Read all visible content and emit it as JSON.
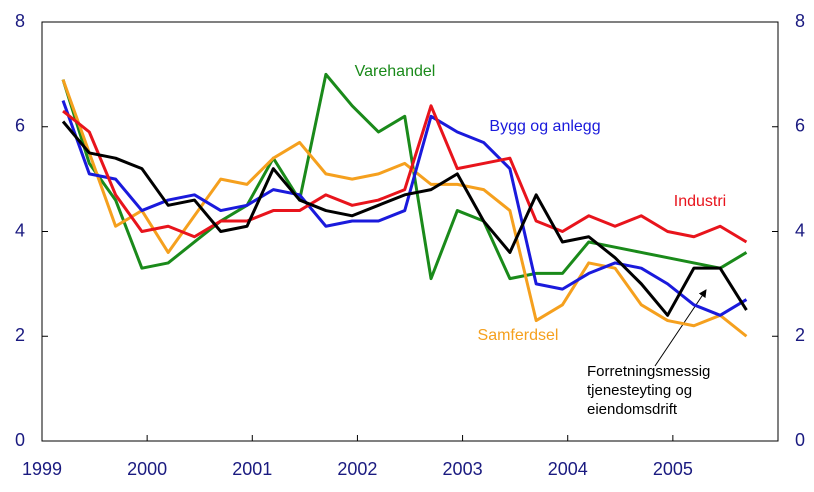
{
  "chart_data": {
    "type": "line",
    "x": [
      1999.2,
      1999.45,
      1999.7,
      1999.95,
      2000.2,
      2000.45,
      2000.7,
      2000.95,
      2001.2,
      2001.45,
      2001.7,
      2001.95,
      2002.2,
      2002.45,
      2002.7,
      2002.95,
      2003.2,
      2003.45,
      2003.7,
      2003.95,
      2004.2,
      2004.45,
      2004.7,
      2004.95,
      2005.2,
      2005.45,
      2005.7
    ],
    "xlim": [
      1999,
      2006
    ],
    "xticks": [
      1999,
      2000,
      2001,
      2002,
      2003,
      2004,
      2005
    ],
    "ylim": [
      0,
      8
    ],
    "yticks": [
      0,
      2,
      4,
      6,
      8
    ],
    "y2lim": [
      0,
      8
    ],
    "y2ticks": [
      0,
      2,
      4,
      6,
      8
    ],
    "series": [
      {
        "name": "Industri",
        "color": "#e8141c",
        "values": [
          6.3,
          5.9,
          4.7,
          4.0,
          4.1,
          3.9,
          4.2,
          4.2,
          4.4,
          4.4,
          4.7,
          4.5,
          4.6,
          4.8,
          6.4,
          5.2,
          5.3,
          5.4,
          4.2,
          4.0,
          4.3,
          4.1,
          4.3,
          4.0,
          3.9,
          4.1,
          3.8
        ]
      },
      {
        "name": "Varehandel",
        "color": "#1a8a1a",
        "values": [
          6.9,
          5.3,
          4.6,
          3.3,
          3.4,
          3.8,
          4.2,
          4.5,
          5.4,
          4.6,
          7.0,
          6.4,
          5.9,
          6.2,
          3.1,
          4.4,
          4.2,
          3.1,
          3.2,
          3.2,
          3.8,
          3.7,
          3.6,
          3.5,
          3.4,
          3.3,
          3.6
        ]
      },
      {
        "name": "Bygg og anlegg",
        "color": "#1a1adc",
        "values": [
          6.5,
          5.1,
          5.0,
          4.4,
          4.6,
          4.7,
          4.4,
          4.5,
          4.8,
          4.7,
          4.1,
          4.2,
          4.2,
          4.4,
          6.2,
          5.9,
          5.7,
          5.2,
          3.0,
          2.9,
          3.2,
          3.4,
          3.3,
          3.0,
          2.6,
          2.4,
          2.7
        ]
      },
      {
        "name": "Samferdsel",
        "color": "#f5a01e",
        "values": [
          6.9,
          5.5,
          4.1,
          4.4,
          3.6,
          4.3,
          5.0,
          4.9,
          5.4,
          5.7,
          5.1,
          5.0,
          5.1,
          5.3,
          4.9,
          4.9,
          4.8,
          4.4,
          2.3,
          2.6,
          3.4,
          3.3,
          2.6,
          2.3,
          2.2,
          2.4,
          2.0
        ]
      },
      {
        "name": "Forretningsmessig tjenesteyting og eiendomsdrift",
        "color": "#000000",
        "values": [
          6.1,
          5.5,
          5.4,
          5.2,
          4.5,
          4.6,
          4.0,
          4.1,
          5.2,
          4.6,
          4.4,
          4.3,
          4.5,
          4.7,
          4.8,
          5.1,
          4.2,
          3.6,
          4.7,
          3.8,
          3.9,
          3.5,
          3.0,
          2.4,
          3.3,
          3.3,
          2.5
        ]
      }
    ]
  }
}
